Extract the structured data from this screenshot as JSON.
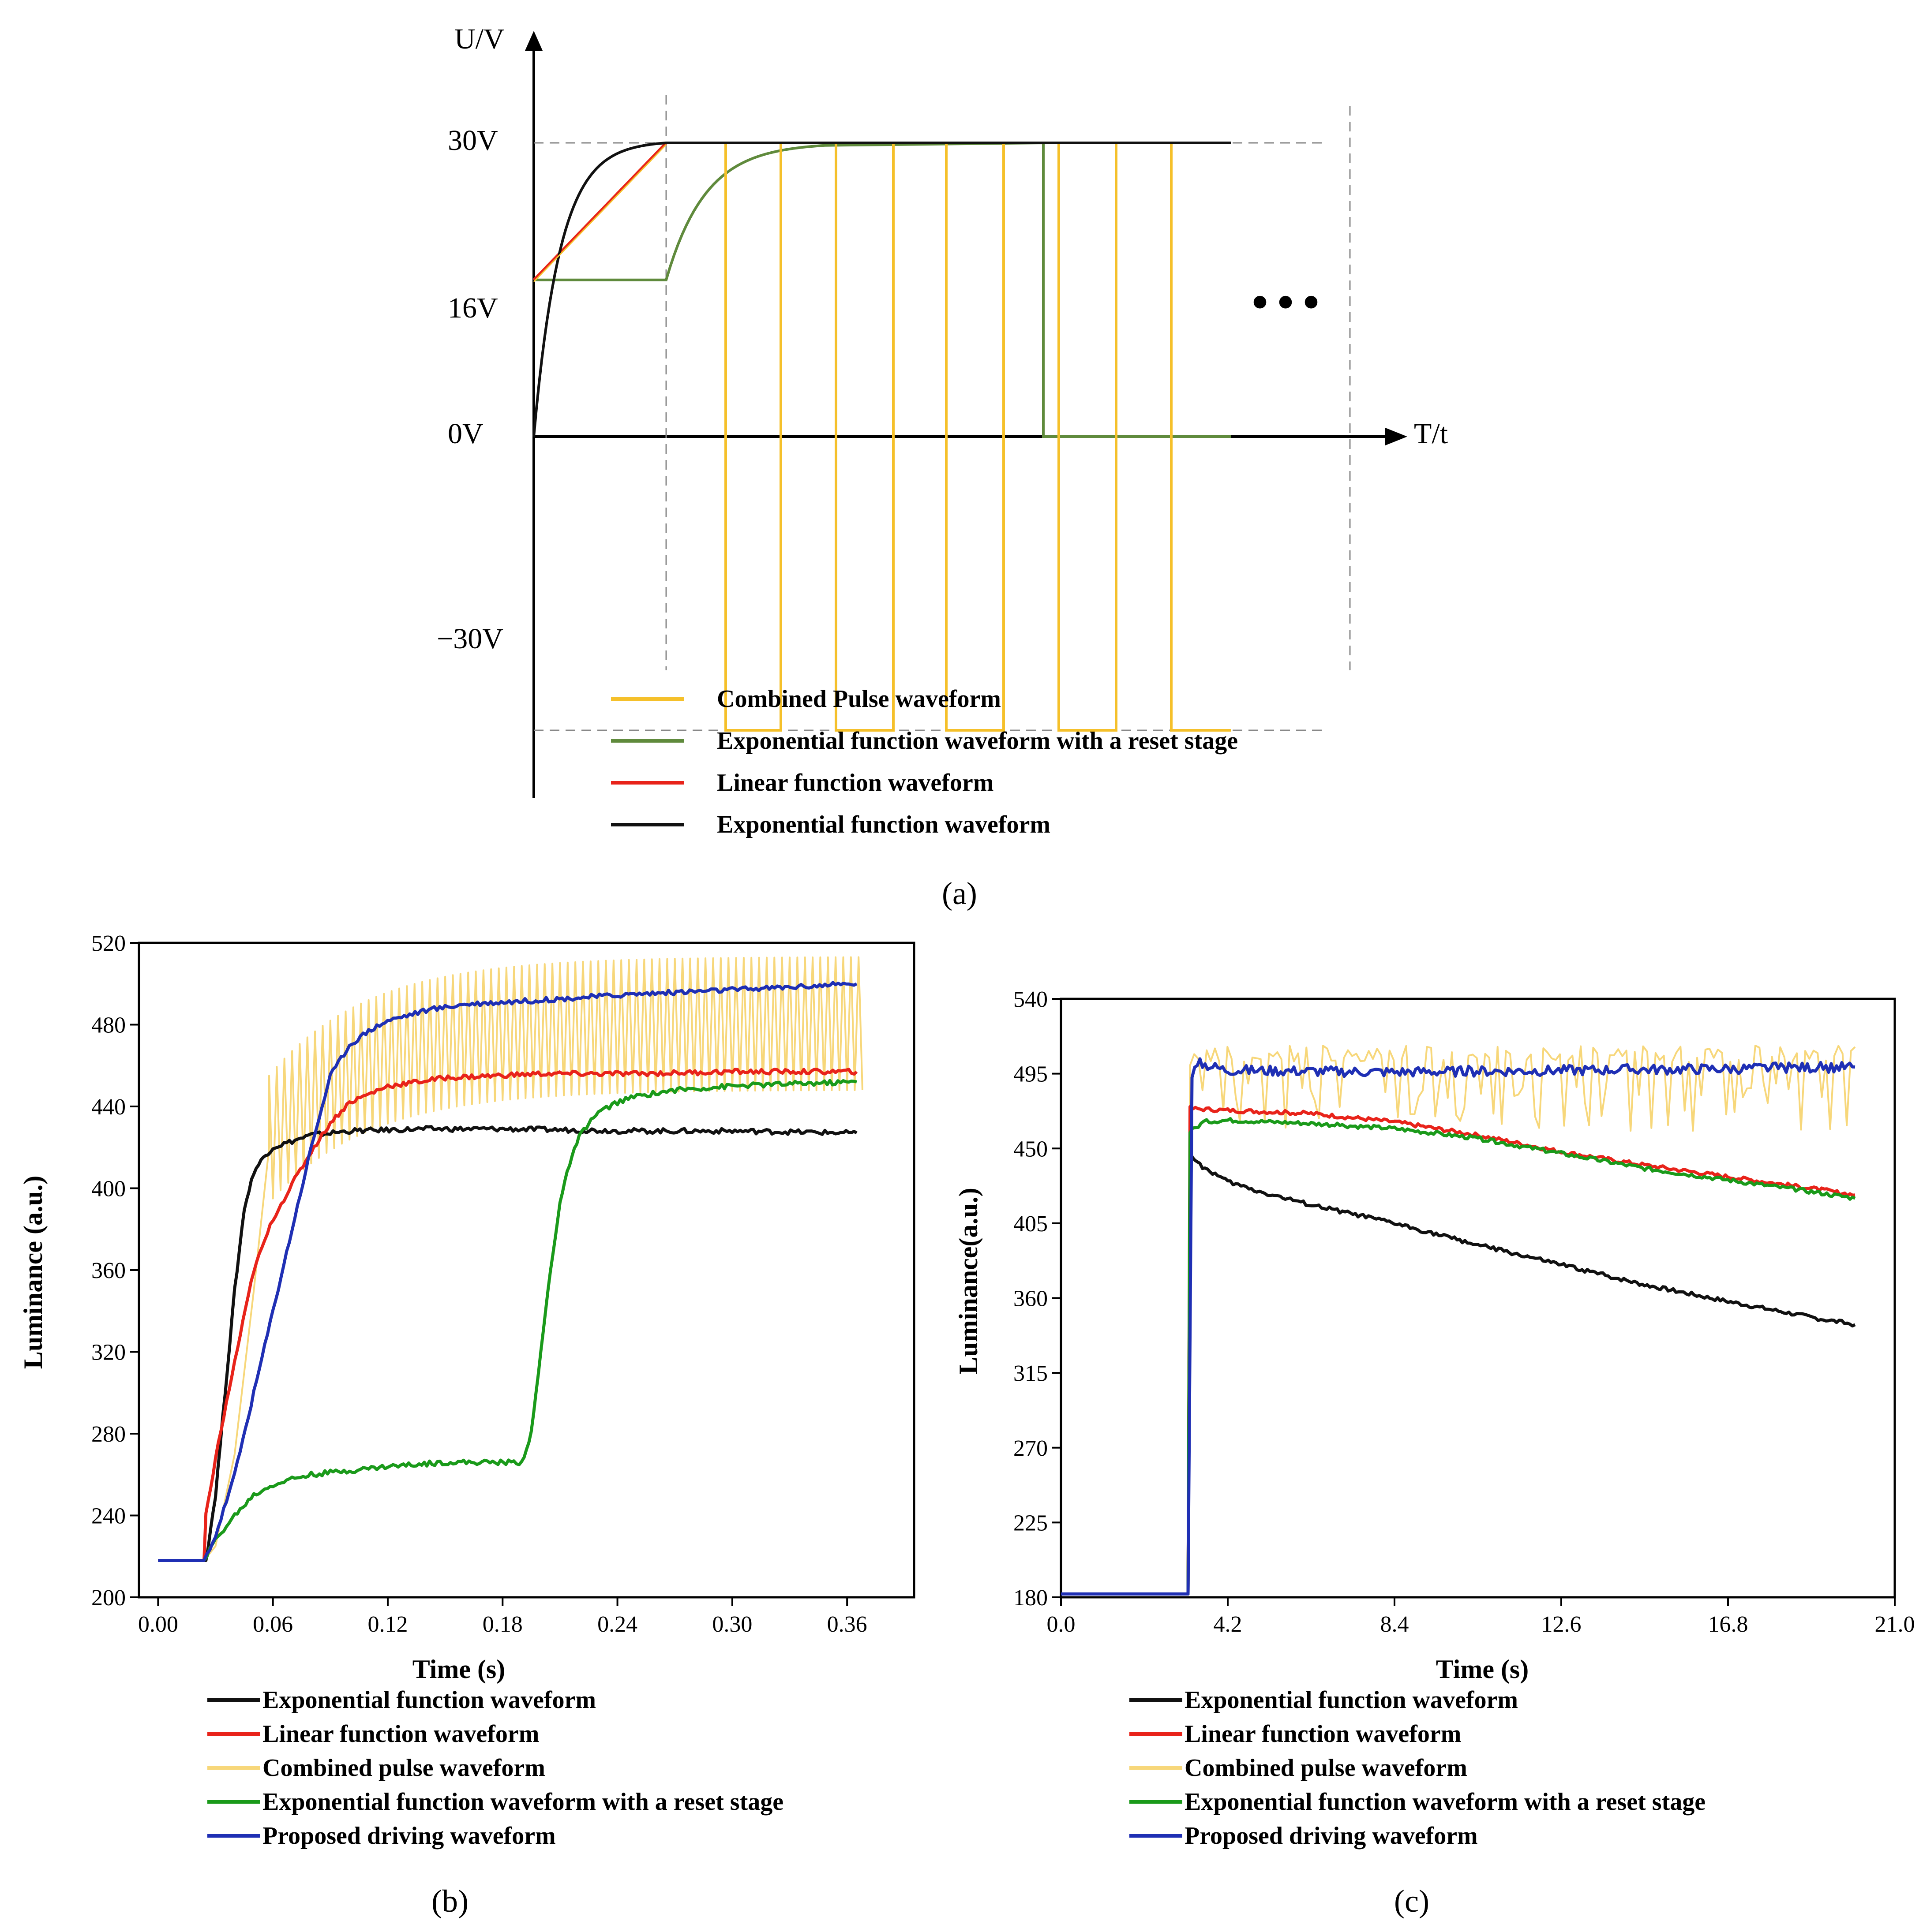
{
  "colors": {
    "black": "#111111",
    "red": "#e8231a",
    "yellow": "#f5c02a",
    "yellow_light": "#f7d77a",
    "green_a": "#5f8a3c",
    "green": "#1a9a1a",
    "blue": "#1f2fb4",
    "axis": "#000000",
    "guide": "#888888"
  },
  "chart_data": [
    {
      "id": "a",
      "type": "line",
      "panel_label": "(a)",
      "ylabel": "U/V",
      "xlabel": "T/t",
      "ytick_labels": [
        "30V",
        "16V",
        "0V",
        "−30V"
      ],
      "ytick_values": [
        30,
        16,
        0,
        -30
      ],
      "continuation": "•••",
      "x_range": [
        0,
        10
      ],
      "y_range": [
        -30,
        30
      ],
      "stage_boundaries": [
        1.85,
        11.4
      ],
      "series": [
        {
          "name": "Exponential function waveform",
          "color_key": "black",
          "shape": "exp_rise_0_to_30_then_hold"
        },
        {
          "name": "Linear function waveform",
          "color_key": "red",
          "shape": "linear_16_to_30_then_hold"
        },
        {
          "name": "Combined Pulse waveform",
          "color_key": "yellow",
          "shape": "linear_16_to_30_then_pulses_30_to_minus30"
        },
        {
          "name": "Exponential function waveform with a reset stage",
          "color_key": "green_a",
          "shape": "hold_16_exp_rise_to_30_then_drop_to_0"
        }
      ],
      "legend": [
        {
          "label": "Combined Pulse waveform",
          "color_key": "yellow"
        },
        {
          "label": "Exponential function waveform with a reset stage",
          "color_key": "green_a"
        },
        {
          "label": "Linear function waveform",
          "color_key": "red"
        },
        {
          "label": "Exponential function waveform",
          "color_key": "black"
        }
      ]
    },
    {
      "id": "b",
      "type": "line",
      "panel_label": "(b)",
      "xlabel": "Time (s)",
      "ylabel": "Luminance (a.u.)",
      "xlim": [
        -0.01,
        0.395
      ],
      "ylim": [
        200,
        520
      ],
      "xticks": [
        "0.00",
        "0.06",
        "0.12",
        "0.18",
        "0.24",
        "0.30",
        "0.36"
      ],
      "yticks": [
        "200",
        "240",
        "280",
        "320",
        "360",
        "400",
        "440",
        "480",
        "520"
      ],
      "series": [
        {
          "name": "Exponential function waveform",
          "color_key": "black",
          "x": [
            0.0,
            0.025,
            0.03,
            0.035,
            0.04,
            0.045,
            0.05,
            0.055,
            0.06,
            0.07,
            0.08,
            0.1,
            0.14,
            0.18,
            0.25,
            0.3,
            0.365
          ],
          "y": [
            218,
            218,
            250,
            300,
            350,
            390,
            408,
            415,
            420,
            423,
            426,
            428,
            429,
            429,
            428,
            428,
            427
          ]
        },
        {
          "name": "Linear function waveform",
          "color_key": "red",
          "x": [
            0.0,
            0.024,
            0.025,
            0.03,
            0.04,
            0.05,
            0.06,
            0.07,
            0.08,
            0.09,
            0.1,
            0.12,
            0.15,
            0.2,
            0.25,
            0.3,
            0.365
          ],
          "y": [
            218,
            218,
            240,
            268,
            315,
            360,
            385,
            402,
            418,
            432,
            442,
            450,
            454,
            456,
            456,
            457,
            457
          ]
        },
        {
          "name": "Combined pulse waveform",
          "color_key": "yellow_light",
          "pulse": {
            "x0": 0.058,
            "x1": 0.365,
            "period": 0.004
          },
          "band_upper": [
            455,
            513
          ],
          "band_lower": [
            395,
            448
          ],
          "x": [
            0.0,
            0.024,
            0.03,
            0.04,
            0.05,
            0.058
          ],
          "y": [
            218,
            218,
            225,
            270,
            350,
            420
          ]
        },
        {
          "name": "Exponential function waveform with a reset stage",
          "color_key": "green",
          "x": [
            0.0,
            0.024,
            0.03,
            0.04,
            0.05,
            0.06,
            0.07,
            0.08,
            0.1,
            0.12,
            0.15,
            0.19,
            0.195,
            0.2,
            0.205,
            0.21,
            0.215,
            0.22,
            0.225,
            0.23,
            0.24,
            0.25,
            0.27,
            0.3,
            0.33,
            0.365
          ],
          "y": [
            218,
            218,
            228,
            240,
            250,
            255,
            258,
            260,
            262,
            264,
            266,
            266,
            280,
            320,
            360,
            393,
            412,
            425,
            432,
            437,
            442,
            445,
            448,
            450,
            451,
            452
          ]
        },
        {
          "name": "Proposed driving waveform",
          "color_key": "blue",
          "x": [
            0.0,
            0.024,
            0.03,
            0.04,
            0.05,
            0.06,
            0.07,
            0.08,
            0.09,
            0.1,
            0.11,
            0.12,
            0.14,
            0.16,
            0.2,
            0.25,
            0.3,
            0.365
          ],
          "y": [
            218,
            218,
            230,
            260,
            300,
            340,
            380,
            420,
            455,
            470,
            477,
            482,
            487,
            490,
            492,
            495,
            497,
            500
          ]
        }
      ],
      "legend": [
        {
          "label": "Exponential function waveform",
          "color_key": "black"
        },
        {
          "label": "Linear function waveform",
          "color_key": "red"
        },
        {
          "label": "Combined pulse waveform",
          "color_key": "yellow_light"
        },
        {
          "label": "Exponential function waveform with a reset stage",
          "color_key": "green"
        },
        {
          "label": "Proposed driving waveform",
          "color_key": "blue"
        }
      ]
    },
    {
      "id": "c",
      "type": "line",
      "panel_label": "(c)",
      "xlabel": "Time (s)",
      "ylabel": "Luminance(a.u.)",
      "xlim": [
        0,
        21.0
      ],
      "ylim": [
        180,
        540
      ],
      "xticks": [
        "0.0",
        "4.2",
        "8.4",
        "12.6",
        "16.8",
        "21.0"
      ],
      "yticks": [
        "180",
        "225",
        "270",
        "315",
        "360",
        "405",
        "450",
        "495",
        "540"
      ],
      "series": [
        {
          "name": "Exponential function waveform",
          "color_key": "black",
          "x": [
            0,
            3.2,
            3.25,
            3.5,
            4.2,
            5.0,
            6.3,
            8.4,
            10.5,
            12.6,
            14.7,
            16.8,
            19.0,
            20.0
          ],
          "y": [
            182,
            182,
            447,
            440,
            430,
            424,
            416,
            405,
            392,
            380,
            368,
            358,
            348,
            344
          ]
        },
        {
          "name": "Linear function waveform",
          "color_key": "red",
          "x": [
            0,
            3.2,
            3.25,
            4.2,
            6.3,
            8.4,
            10.5,
            12.6,
            14.7,
            16.8,
            18.9,
            20.0
          ],
          "y": [
            182,
            182,
            474,
            473,
            471,
            466,
            458,
            448,
            440,
            433,
            426,
            422
          ]
        },
        {
          "name": "Combined pulse waveform",
          "color_key": "yellow_light",
          "x": [
            0,
            3.2,
            3.25,
            20.0
          ],
          "y": [
            182,
            182,
            500,
            512
          ],
          "noise": {
            "upper": 512,
            "lower": 460
          }
        },
        {
          "name": "Exponential function waveform with a reset stage",
          "color_key": "green",
          "x": [
            0,
            3.2,
            3.25,
            3.6,
            4.2,
            6.3,
            8.4,
            10.5,
            12.6,
            14.7,
            16.8,
            18.9,
            20.0
          ],
          "y": [
            182,
            182,
            460,
            466,
            467,
            465,
            462,
            456,
            447,
            438,
            431,
            424,
            420
          ]
        },
        {
          "name": "Proposed driving waveform",
          "color_key": "blue",
          "x": [
            0,
            3.2,
            3.3,
            3.5,
            4.2,
            8.4,
            12.6,
            16.8,
            20.0
          ],
          "y": [
            182,
            182,
            495,
            501,
            497,
            496,
            497,
            498,
            499
          ],
          "noise_amp": 3
        }
      ],
      "legend": [
        {
          "label": "Exponential function waveform",
          "color_key": "black"
        },
        {
          "label": "Linear function waveform",
          "color_key": "red"
        },
        {
          "label": "Combined pulse waveform",
          "color_key": "yellow_light"
        },
        {
          "label": "Exponential function waveform with a reset stage",
          "color_key": "green"
        },
        {
          "label": "Proposed driving waveform",
          "color_key": "blue"
        }
      ]
    }
  ]
}
